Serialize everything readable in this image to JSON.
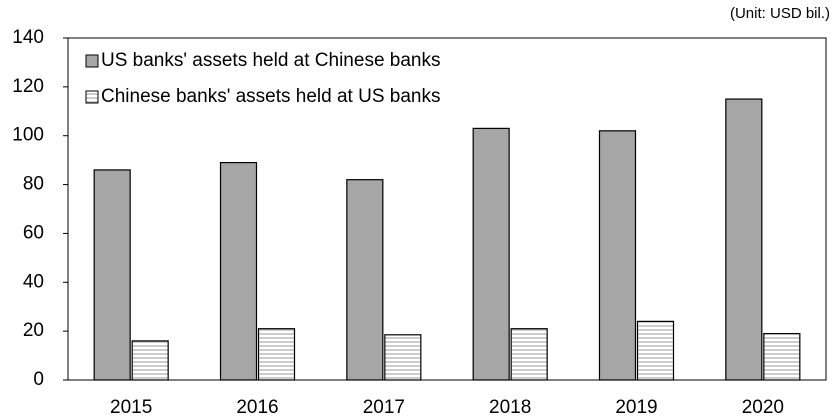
{
  "chart_data": {
    "type": "bar",
    "subtitle": "(Unit: USD bil.)",
    "categories": [
      "2015",
      "2016",
      "2017",
      "2018",
      "2019",
      "2020"
    ],
    "series": [
      {
        "name": "US banks' assets held at Chinese banks",
        "color": "#a6a6a6",
        "values": [
          86,
          89,
          82,
          103,
          102,
          115
        ]
      },
      {
        "name": "Chinese banks' assets held at US banks",
        "color": "#ffffff",
        "hatch": "horizontal",
        "values": [
          16,
          21,
          18.5,
          21,
          24,
          19
        ]
      }
    ],
    "ylim": [
      0,
      140
    ],
    "yticks": [
      0,
      20,
      40,
      60,
      80,
      100,
      120,
      140
    ],
    "grid": false,
    "legend": "upper left"
  }
}
